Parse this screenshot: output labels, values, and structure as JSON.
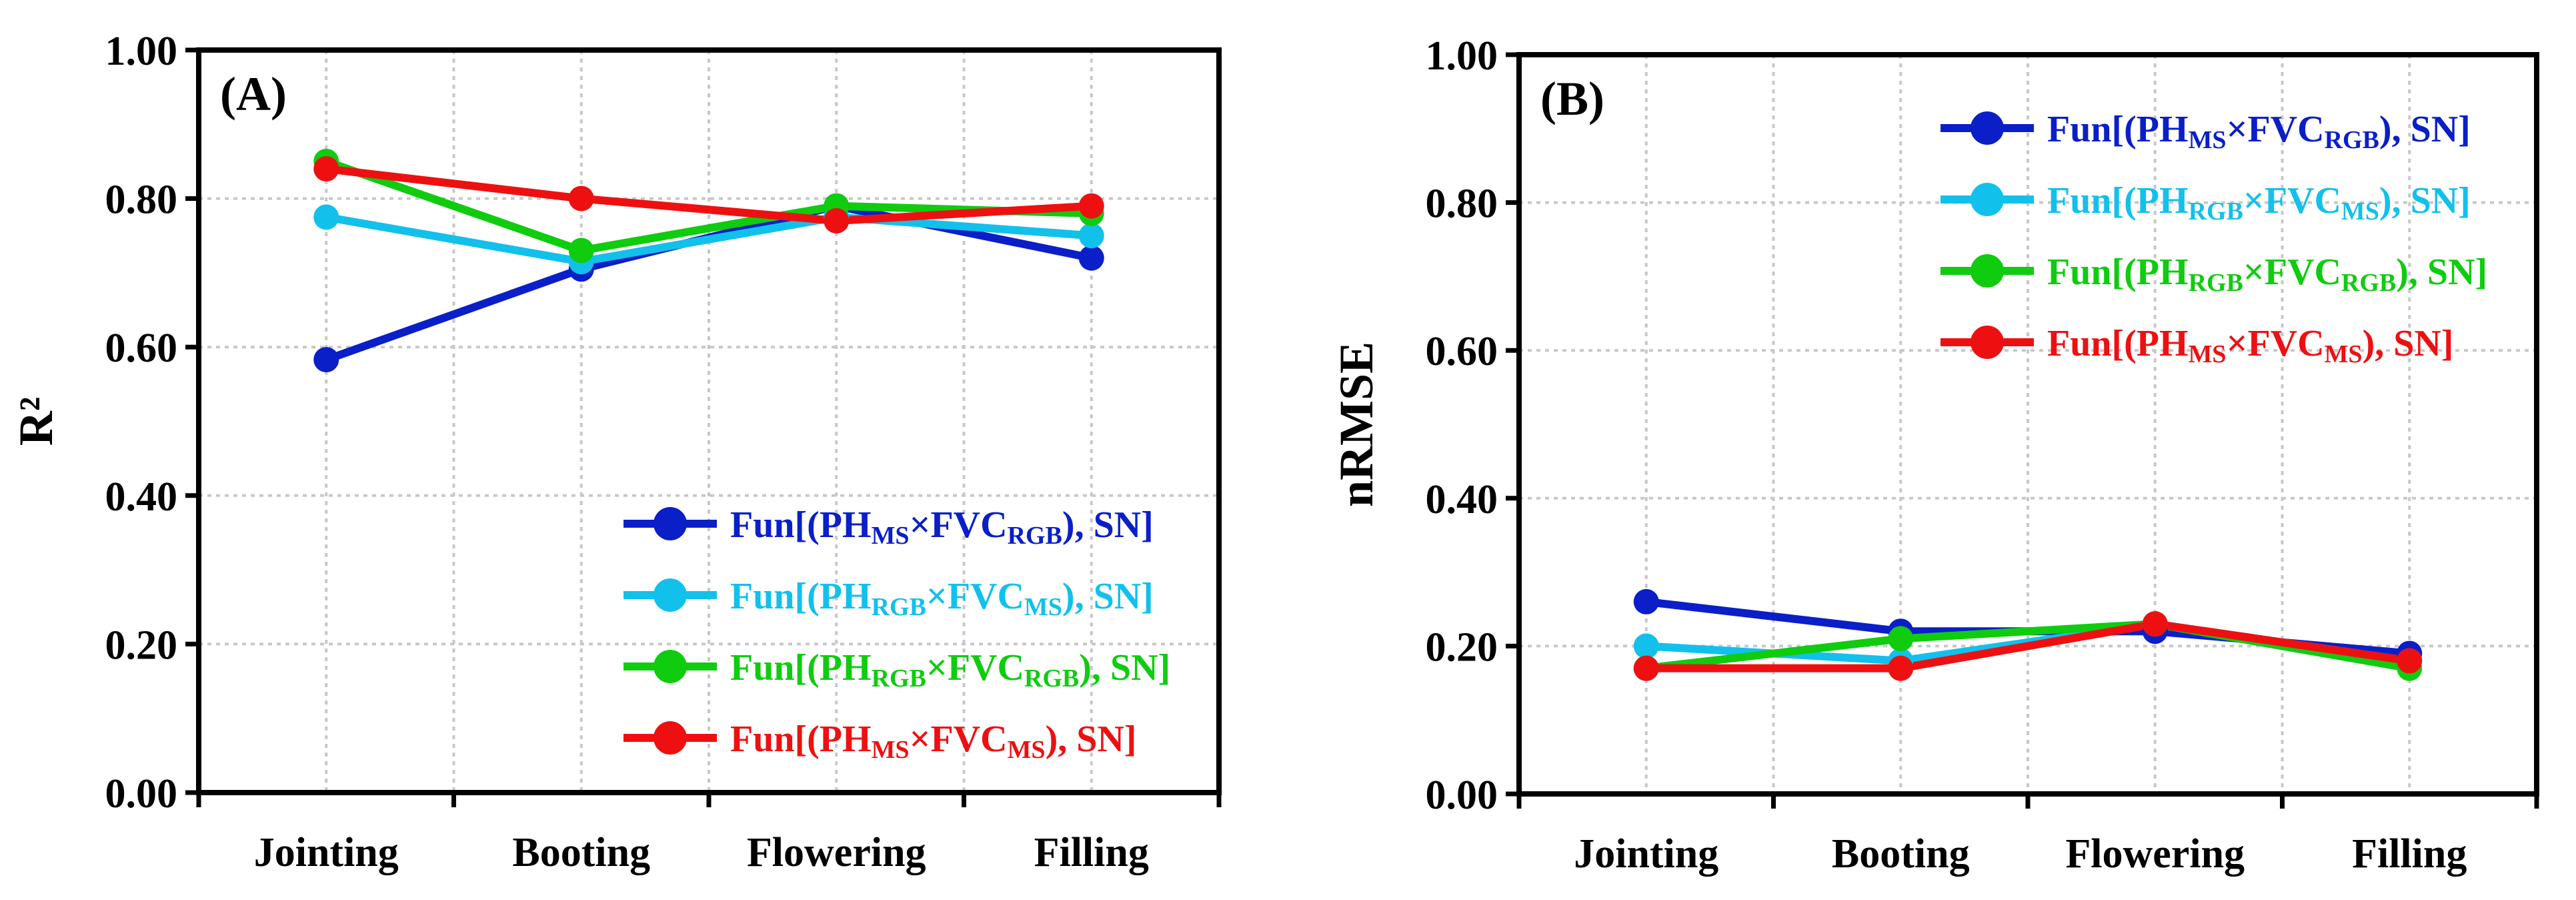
{
  "chart_data": [
    {
      "type": "line",
      "panel_label": "(A)",
      "ylabel": "R²",
      "xlabel": "",
      "ylim": [
        0,
        1
      ],
      "yticks": [
        "0.00",
        "0.20",
        "0.40",
        "0.60",
        "0.80",
        "1.00"
      ],
      "grid": true,
      "legend_position": "bottom-right",
      "categories": [
        "Jointing",
        "Booting",
        "Flowering",
        "Filling"
      ],
      "series": [
        {
          "name": "Fun[(PH_MS×FVC_RGB), SN]",
          "legend_parts": [
            {
              "t": "Fun[(PH"
            },
            {
              "t": "MS",
              "sub": true
            },
            {
              "t": "×FVC"
            },
            {
              "t": "RGB",
              "sub": true
            },
            {
              "t": "), SN]"
            }
          ],
          "color": "#0a1fc8",
          "values": [
            0.583,
            0.705,
            0.79,
            0.72
          ]
        },
        {
          "name": "Fun[(PH_RGB×FVC_MS), SN]",
          "legend_parts": [
            {
              "t": "Fun[(PH"
            },
            {
              "t": "RGB",
              "sub": true
            },
            {
              "t": "×FVC"
            },
            {
              "t": "MS",
              "sub": true
            },
            {
              "t": "), SN]"
            }
          ],
          "color": "#12c0ec",
          "values": [
            0.775,
            0.715,
            0.775,
            0.75
          ]
        },
        {
          "name": "Fun[(PH_RGB×FVC_RGB), SN]",
          "legend_parts": [
            {
              "t": "Fun[(PH"
            },
            {
              "t": "RGB",
              "sub": true
            },
            {
              "t": "×FVC"
            },
            {
              "t": "RGB",
              "sub": true
            },
            {
              "t": "), SN]"
            }
          ],
          "color": "#0fcc0f",
          "values": [
            0.85,
            0.73,
            0.79,
            0.78
          ]
        },
        {
          "name": "Fun[(PH_MS×FVC_MS), SN]",
          "legend_parts": [
            {
              "t": "Fun[(PH"
            },
            {
              "t": "MS",
              "sub": true
            },
            {
              "t": "×FVC"
            },
            {
              "t": "MS",
              "sub": true
            },
            {
              "t": "), SN]"
            }
          ],
          "color": "#ee1010",
          "values": [
            0.84,
            0.8,
            0.77,
            0.79
          ]
        }
      ]
    },
    {
      "type": "line",
      "panel_label": "(B)",
      "ylabel": "nRMSE",
      "xlabel": "",
      "ylim": [
        0,
        1
      ],
      "yticks": [
        "0.00",
        "0.20",
        "0.40",
        "0.60",
        "0.80",
        "1.00"
      ],
      "grid": true,
      "legend_position": "top-right",
      "categories": [
        "Jointing",
        "Booting",
        "Flowering",
        "Filling"
      ],
      "series": [
        {
          "name": "Fun[(PH_MS×FVC_RGB), SN]",
          "legend_parts": [
            {
              "t": "Fun[(PH"
            },
            {
              "t": "MS",
              "sub": true
            },
            {
              "t": "×FVC"
            },
            {
              "t": "RGB",
              "sub": true
            },
            {
              "t": "), SN]"
            }
          ],
          "color": "#0a1fc8",
          "values": [
            0.26,
            0.22,
            0.22,
            0.19
          ]
        },
        {
          "name": "Fun[(PH_RGB×FVC_MS), SN]",
          "legend_parts": [
            {
              "t": "Fun[(PH"
            },
            {
              "t": "RGB",
              "sub": true
            },
            {
              "t": "×FVC"
            },
            {
              "t": "MS",
              "sub": true
            },
            {
              "t": "), SN]"
            }
          ],
          "color": "#12c0ec",
          "values": [
            0.2,
            0.18,
            0.23,
            0.18
          ]
        },
        {
          "name": "Fun[(PH_RGB×FVC_RGB), SN]",
          "legend_parts": [
            {
              "t": "Fun[(PH"
            },
            {
              "t": "RGB",
              "sub": true
            },
            {
              "t": "×FVC"
            },
            {
              "t": "RGB",
              "sub": true
            },
            {
              "t": "), SN]"
            }
          ],
          "color": "#0fcc0f",
          "values": [
            0.17,
            0.21,
            0.23,
            0.17
          ]
        },
        {
          "name": "Fun[(PH_MS×FVC_MS), SN]",
          "legend_parts": [
            {
              "t": "Fun[(PH"
            },
            {
              "t": "MS",
              "sub": true
            },
            {
              "t": "×FVC"
            },
            {
              "t": "MS",
              "sub": true
            },
            {
              "t": "), SN]"
            }
          ],
          "color": "#ee1010",
          "values": [
            0.17,
            0.17,
            0.23,
            0.18
          ]
        }
      ]
    }
  ]
}
